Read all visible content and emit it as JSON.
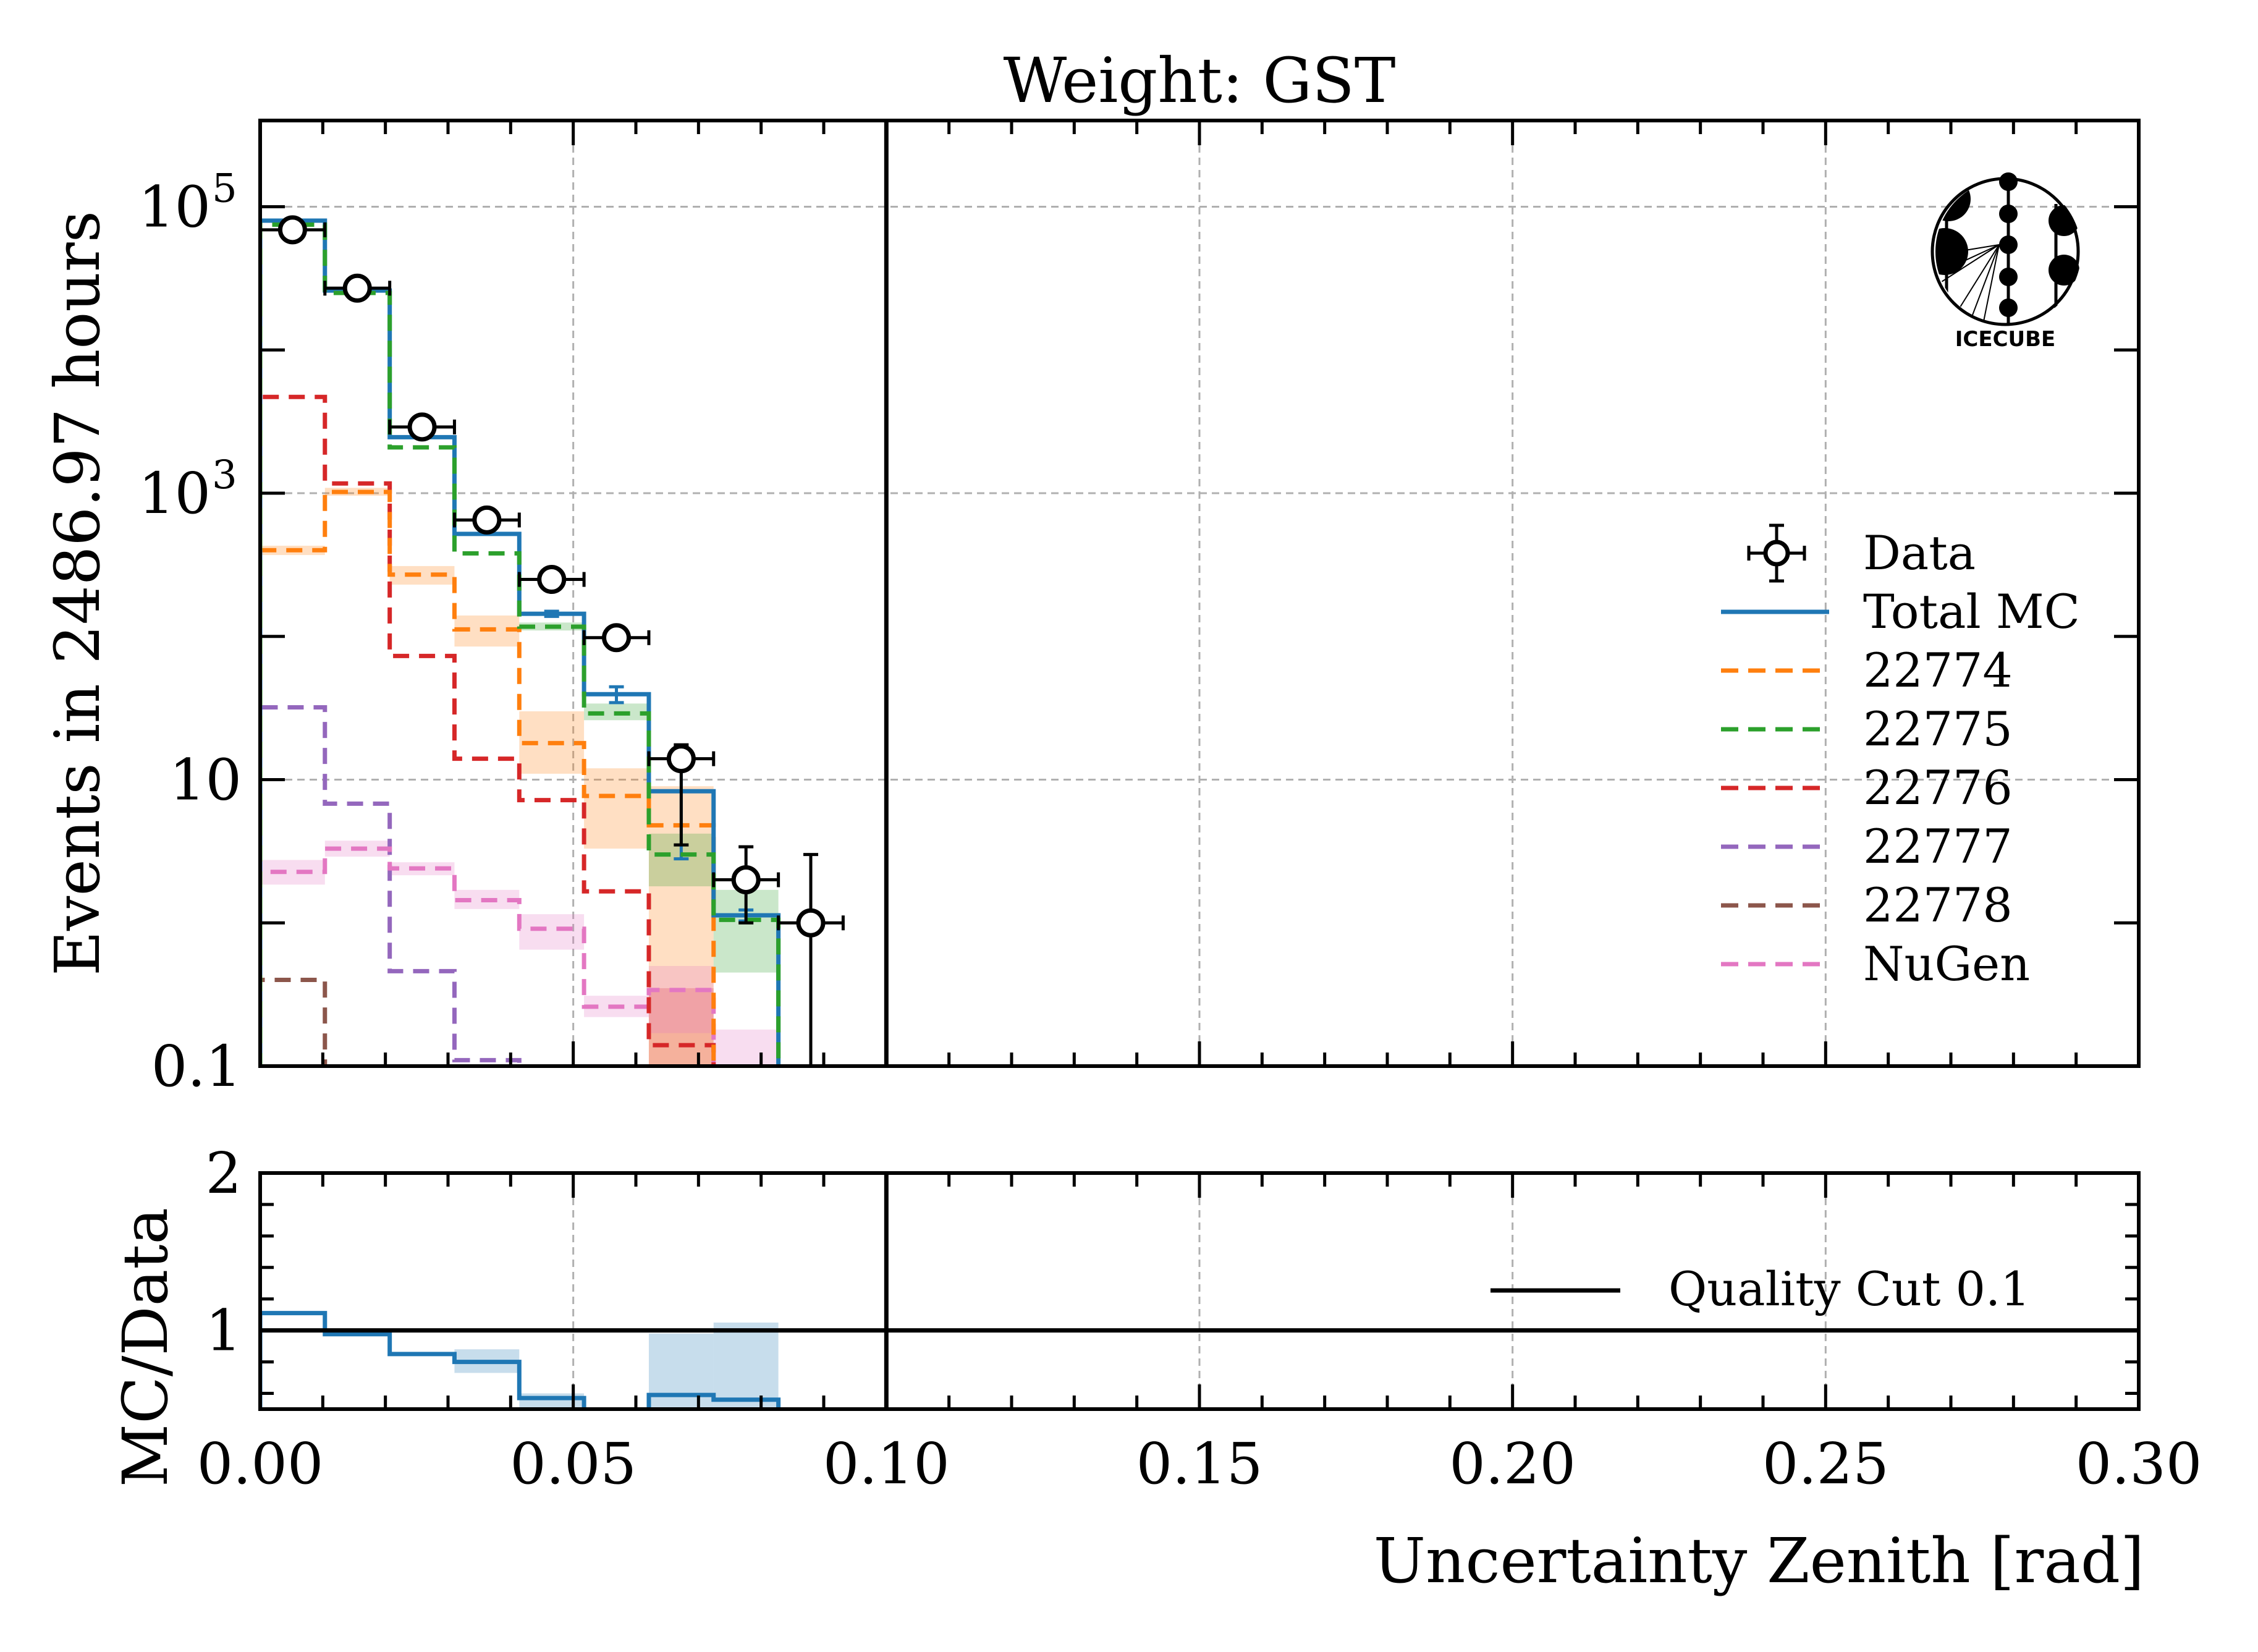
{
  "chart_data": [
    {
      "type": "histogram-step",
      "panel": "main",
      "title": "Weight: GST",
      "xlabel": "Uncertainty Zenith [rad]",
      "ylabel": "Events in 2486.97 hours",
      "xlim": [
        0.0,
        0.3
      ],
      "ylim": [
        0.1,
        400000
      ],
      "yscale": "log",
      "grid": true,
      "x_ticks": [
        "0.00",
        "0.05",
        "0.10",
        "0.15",
        "0.20",
        "0.25",
        "0.30"
      ],
      "y_ticks": [
        {
          "value": 0.1,
          "label": "0.1"
        },
        {
          "value": 10,
          "label": "10"
        },
        {
          "value": 1000,
          "label": "10",
          "sup": "3"
        },
        {
          "value": 100000,
          "label": "10",
          "sup": "5"
        }
      ],
      "bin_edges": [
        0.0,
        0.01034,
        0.02069,
        0.03103,
        0.04138,
        0.05172,
        0.06207,
        0.07241,
        0.08276,
        0.0931,
        0.10345
      ],
      "quality_cut": 0.1,
      "legend_position": "center-right",
      "series": [
        {
          "name": "Data",
          "kind": "points",
          "color": "#000000",
          "values": [
            69000,
            27000,
            2900,
            650,
            250,
            98,
            14,
            2.0,
            1.0
          ],
          "err_low": [
            0,
            0,
            0,
            0,
            0,
            0,
            10.5,
            1.0,
            1.0
          ],
          "err_high": [
            0,
            0,
            0,
            0,
            0,
            0,
            3.5,
            1.4,
            2.0
          ]
        },
        {
          "name": "Total MC",
          "kind": "step",
          "color": "#1f77b4",
          "dash": false,
          "values": [
            80000,
            26000,
            2460,
            520,
            144,
            39.5,
            8.3,
            1.13,
            null
          ],
          "err": [
            0,
            0,
            0,
            0,
            6,
            5,
            5.5,
            0.1,
            null
          ]
        },
        {
          "name": "22774",
          "kind": "step",
          "color": "#ff7f0e",
          "dash": true,
          "values": [
            400,
            1020,
            270,
            112,
            18,
            7.7,
            4.8,
            null,
            null
          ],
          "band": [
            [
              370,
              430
            ],
            [
              960,
              1090
            ],
            [
              230,
              310
            ],
            [
              85,
              140
            ],
            [
              11,
              30
            ],
            [
              3.3,
              12
            ],
            [
              0.1,
              9
            ],
            null,
            null
          ]
        },
        {
          "name": "22775",
          "kind": "step",
          "color": "#2ca02c",
          "dash": true,
          "values": [
            75000,
            25000,
            2090,
            380,
            117,
            29,
            3.0,
            1.05,
            null
          ],
          "band": [
            null,
            null,
            null,
            null,
            [
              110,
              125
            ],
            [
              26,
              34
            ],
            [
              1.8,
              4.2
            ],
            [
              0.45,
              1.7
            ],
            null
          ]
        },
        {
          "name": "22776",
          "kind": "step",
          "color": "#d62728",
          "dash": true,
          "values": [
            4700,
            1170,
            73,
            14,
            7.2,
            1.66,
            0.14,
            null,
            null
          ],
          "band": [
            null,
            null,
            null,
            null,
            null,
            null,
            [
              0.1,
              0.35
            ],
            null,
            null
          ]
        },
        {
          "name": "22777",
          "kind": "step",
          "color": "#9467bd",
          "dash": true,
          "values": [
            32,
            6.8,
            0.46,
            0.11,
            null,
            null,
            null,
            null,
            null
          ]
        },
        {
          "name": "22778",
          "kind": "step",
          "color": "#8c564b",
          "dash": true,
          "values": [
            0.4,
            null,
            null,
            null,
            null,
            null,
            null,
            null,
            null
          ]
        },
        {
          "name": "NuGen",
          "kind": "step",
          "color": "#e377c2",
          "dash": true,
          "values": [
            2.27,
            3.3,
            2.4,
            1.44,
            0.91,
            0.26,
            0.34,
            null,
            null
          ],
          "band": [
            [
              1.85,
              2.75
            ],
            [
              2.9,
              3.75
            ],
            [
              2.15,
              2.65
            ],
            [
              1.25,
              1.7
            ],
            [
              0.65,
              1.15
            ],
            [
              0.22,
              0.31
            ],
            [
              0.17,
              0.5
            ],
            [
              0.1,
              0.18
            ],
            null
          ]
        }
      ]
    },
    {
      "type": "histogram-step",
      "panel": "ratio",
      "xlabel": "Uncertainty Zenith [rad]",
      "ylabel": "MC/Data",
      "xlim": [
        0.0,
        0.3
      ],
      "ylim": [
        0.5,
        2.0
      ],
      "y_ticks": [
        {
          "value": 1,
          "label": "1"
        },
        {
          "value": 2,
          "label": "2"
        }
      ],
      "reference_line": 1.0,
      "legend": [
        {
          "name": "Quality Cut 0.1",
          "color": "#000000"
        }
      ],
      "series": [
        {
          "name": "MC/Data",
          "color": "#1f77b4",
          "values": [
            1.11,
            0.976,
            0.85,
            0.8,
            0.57,
            null,
            0.59,
            0.56,
            null
          ],
          "band": [
            null,
            null,
            null,
            [
              0.73,
              0.88
            ],
            [
              0.5,
              0.6
            ],
            null,
            [
              0.5,
              0.98
            ],
            [
              0.5,
              1.05
            ],
            null
          ]
        }
      ]
    }
  ],
  "logo": {
    "name": "IceCube",
    "text": "ICECUBE"
  }
}
